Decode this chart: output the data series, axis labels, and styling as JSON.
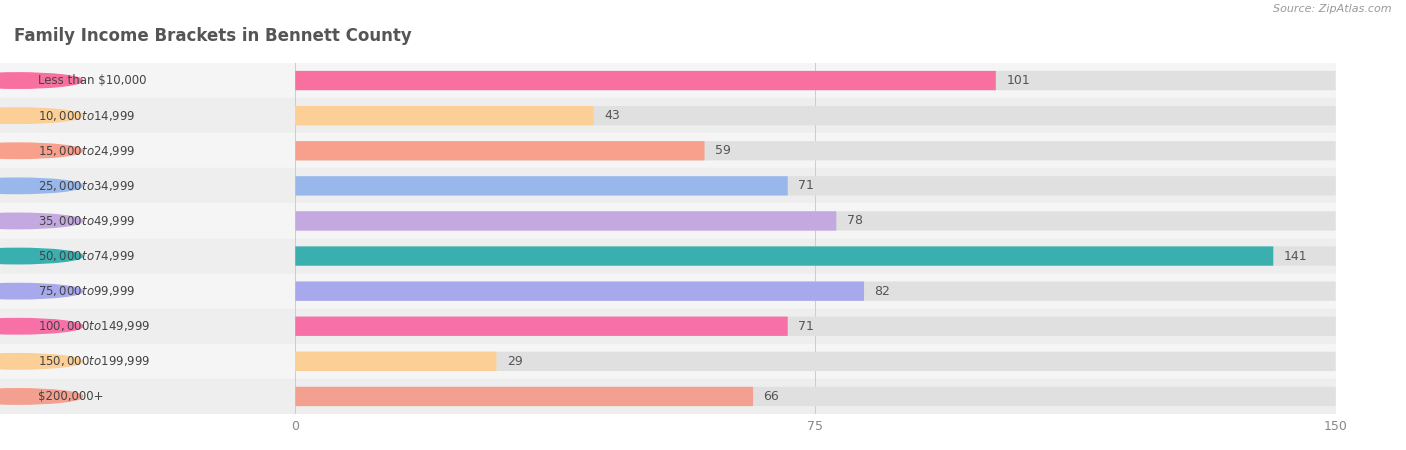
{
  "title": "Family Income Brackets in Bennett County",
  "source": "Source: ZipAtlas.com",
  "categories": [
    "Less than $10,000",
    "$10,000 to $14,999",
    "$15,000 to $24,999",
    "$25,000 to $34,999",
    "$35,000 to $49,999",
    "$50,000 to $74,999",
    "$75,000 to $99,999",
    "$100,000 to $149,999",
    "$150,000 to $199,999",
    "$200,000+"
  ],
  "values": [
    101,
    43,
    59,
    71,
    78,
    141,
    82,
    71,
    29,
    66
  ],
  "bar_colors": [
    "#F870A0",
    "#FBCF96",
    "#F9A08C",
    "#98B8EC",
    "#C4A8E0",
    "#3AAFAF",
    "#A8A8EC",
    "#F870A8",
    "#FBCF96",
    "#F4A090"
  ],
  "xlim": [
    0,
    150
  ],
  "xticks": [
    0,
    75,
    150
  ],
  "bar_bg_color": "#e0e0e0",
  "title_color": "#555555",
  "value_color": "#555555",
  "source_color": "#999999",
  "row_bg_even": "#f5f5f5",
  "row_bg_odd": "#eeeeee"
}
